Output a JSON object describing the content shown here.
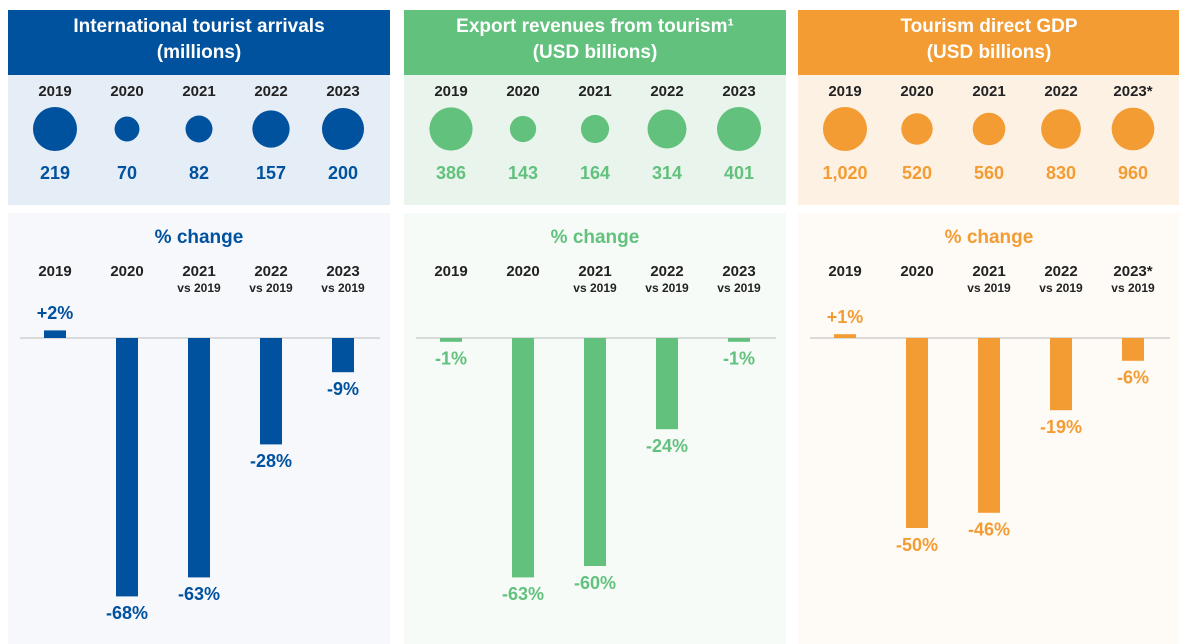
{
  "chart_data": [
    {
      "type": "bubble",
      "title": "International tourist arrivals",
      "subtitle": "(millions)",
      "color": "#00519e",
      "categories": [
        "2019",
        "2020",
        "2021",
        "2022",
        "2023"
      ],
      "values": [
        219,
        70,
        82,
        157,
        200
      ]
    },
    {
      "type": "bar",
      "title": "% change",
      "color": "#00519e",
      "categories": [
        "2019",
        "2020",
        "2021",
        "2022",
        "2023"
      ],
      "category_notes": [
        null,
        null,
        "vs 2019",
        "vs 2019",
        "vs 2019"
      ],
      "values": [
        2,
        -68,
        -63,
        -28,
        -9
      ],
      "value_labels": [
        "+2%",
        "-68%",
        "-63%",
        "-28%",
        "-9%"
      ],
      "ylim": [
        -75,
        10
      ]
    },
    {
      "type": "bubble",
      "title": "Export revenues from tourism¹",
      "subtitle": "(USD billions)",
      "color": "#63c17e",
      "categories": [
        "2019",
        "2020",
        "2021",
        "2022",
        "2023"
      ],
      "values": [
        386,
        143,
        164,
        314,
        401
      ]
    },
    {
      "type": "bar",
      "title": "% change",
      "color": "#63c17e",
      "categories": [
        "2019",
        "2020",
        "2021",
        "2022",
        "2023"
      ],
      "category_notes": [
        null,
        null,
        "vs 2019",
        "vs 2019",
        "vs 2019"
      ],
      "values": [
        -1,
        -63,
        -60,
        -24,
        -1
      ],
      "value_labels": [
        "-1%",
        "-63%",
        "-60%",
        "-24%",
        "-1%"
      ],
      "ylim": [
        -75,
        10
      ]
    },
    {
      "type": "bubble",
      "title": "Tourism direct GDP",
      "subtitle": "(USD billions)",
      "color": "#f39c33",
      "categories": [
        "2019",
        "2020",
        "2021",
        "2022",
        "2023*"
      ],
      "values": [
        1020,
        520,
        560,
        830,
        960
      ],
      "value_labels": [
        "1,020",
        "520",
        "560",
        "830",
        "960"
      ]
    },
    {
      "type": "bar",
      "title": "% change",
      "color": "#f39c33",
      "categories": [
        "2019",
        "2020",
        "2021",
        "2022",
        "2023*"
      ],
      "category_notes": [
        null,
        null,
        "vs 2019",
        "vs 2019",
        "vs 2019"
      ],
      "values": [
        1,
        -50,
        -46,
        -19,
        -6
      ],
      "value_labels": [
        "+1%",
        "-50%",
        "-46%",
        "-19%",
        "-6%"
      ],
      "ylim": [
        -75,
        10
      ]
    }
  ]
}
